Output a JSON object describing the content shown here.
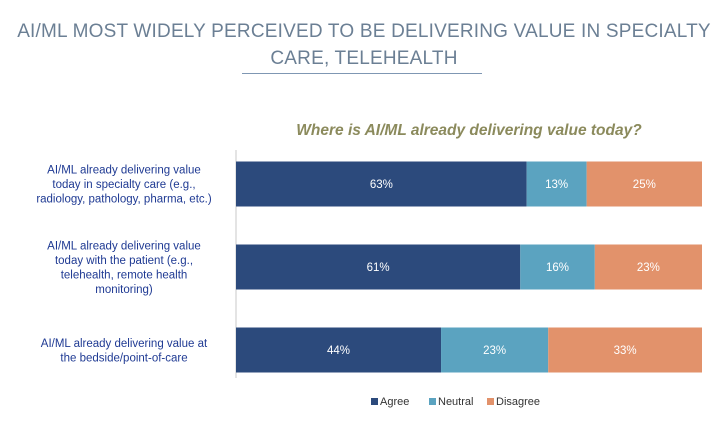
{
  "header": {
    "title_line1": "AI/ML MOST WIDELY PERCEIVED TO BE DELIVERING VALUE IN SPECIALTY",
    "title_line2": "CARE, TELEHEALTH"
  },
  "chart_data": {
    "type": "bar",
    "orientation": "horizontal",
    "stacked": true,
    "title": "Where is AI/ML already delivering value today?",
    "categories": [
      [
        "AI/ML already delivering value",
        "today in specialty care (e.g.,",
        "radiology, pathology, pharma, etc.)"
      ],
      [
        "AI/ML already delivering value",
        "today with the patient (e.g.,",
        "telehealth, remote health",
        "monitoring)"
      ],
      [
        "AI/ML already delivering value at",
        "the bedside/point-of-care"
      ]
    ],
    "series": [
      {
        "name": "Agree",
        "values": [
          63,
          61,
          44
        ],
        "labels": [
          "63%",
          "61%",
          "44%"
        ],
        "color": "#2c4a7c"
      },
      {
        "name": "Neutral",
        "values": [
          13,
          16,
          23
        ],
        "labels": [
          "13%",
          "16%",
          "23%"
        ],
        "color": "#5ba3c0"
      },
      {
        "name": "Disagree",
        "values": [
          25,
          23,
          33
        ],
        "labels": [
          "25%",
          "23%",
          "33%"
        ],
        "color": "#e2926b"
      }
    ],
    "legend_position": "bottom",
    "grid": false
  }
}
